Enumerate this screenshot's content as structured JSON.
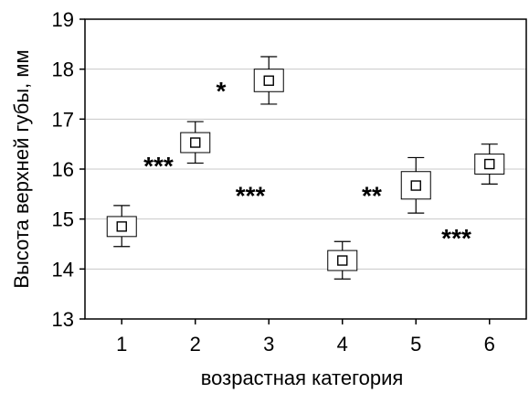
{
  "chart_data": {
    "type": "box",
    "x": [
      1,
      2,
      3,
      4,
      5,
      6
    ],
    "xlabel": "возрастная категория",
    "ylabel": "Высота верхней губы, мм",
    "ylim": [
      13,
      19
    ],
    "xlim": [
      0.5,
      6.5
    ],
    "yticks": [
      "13",
      "14",
      "15",
      "16",
      "17",
      "18",
      "19"
    ],
    "xticks": [
      "1",
      "2",
      "3",
      "4",
      "5",
      "6"
    ],
    "grid": true,
    "series": [
      {
        "points": [
          {
            "x": 1,
            "mean": 14.85,
            "box_low": 14.65,
            "box_high": 15.05,
            "whisker_low": 14.45,
            "whisker_high": 15.27
          },
          {
            "x": 2,
            "mean": 16.53,
            "box_low": 16.33,
            "box_high": 16.73,
            "whisker_low": 16.12,
            "whisker_high": 16.95
          },
          {
            "x": 3,
            "mean": 17.77,
            "box_low": 17.55,
            "box_high": 18.0,
            "whisker_low": 17.3,
            "whisker_high": 18.25
          },
          {
            "x": 4,
            "mean": 14.17,
            "box_low": 13.97,
            "box_high": 14.37,
            "whisker_low": 13.8,
            "whisker_high": 14.55
          },
          {
            "x": 5,
            "mean": 15.67,
            "box_low": 15.4,
            "box_high": 15.95,
            "whisker_low": 15.12,
            "whisker_high": 16.23
          },
          {
            "x": 6,
            "mean": 16.1,
            "box_low": 15.9,
            "box_high": 16.3,
            "whisker_low": 15.7,
            "whisker_high": 16.5
          }
        ]
      }
    ],
    "annotations": [
      {
        "text": "***",
        "x": 1.5,
        "y": 16.15
      },
      {
        "text": "***",
        "x": 2.75,
        "y": 15.55
      },
      {
        "text": "*",
        "x": 2.35,
        "y": 17.65
      },
      {
        "text": "**",
        "x": 4.4,
        "y": 15.55
      },
      {
        "text": "***",
        "x": 5.55,
        "y": 14.7
      }
    ]
  }
}
